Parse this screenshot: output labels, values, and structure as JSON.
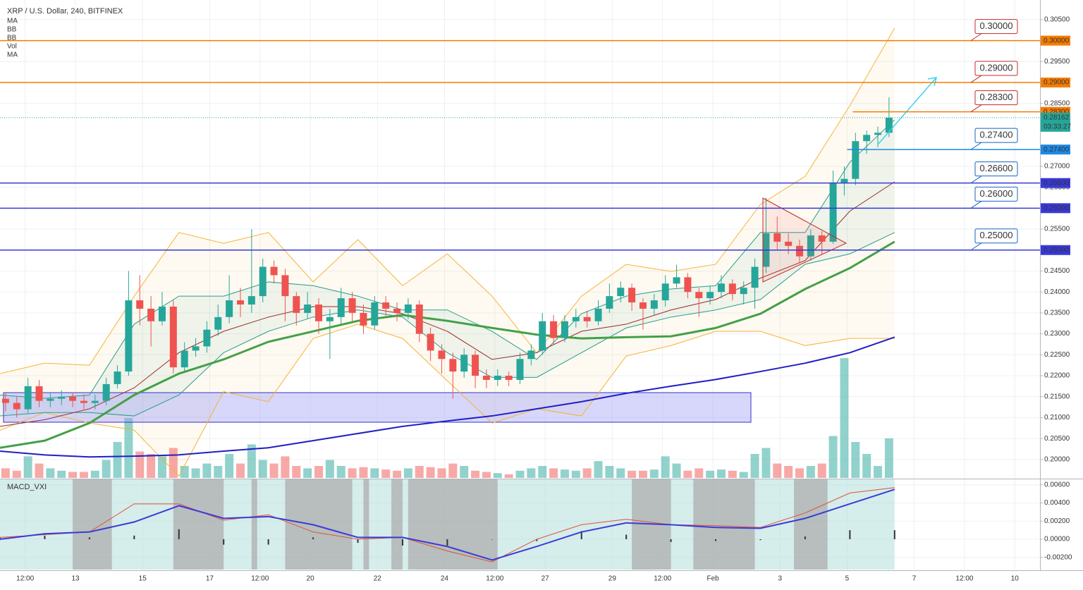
{
  "chart_data": {
    "type": "candlestick",
    "title": "XRP / U.S. Dollar, 240, BITFINEX",
    "xlim": [
      0,
      186
    ],
    "xticks": [
      {
        "value": 4.5,
        "label": "12:00"
      },
      {
        "value": 13.5,
        "label": "13"
      },
      {
        "value": 25.5,
        "label": "15"
      },
      {
        "value": 37.5,
        "label": "17"
      },
      {
        "value": 46.5,
        "label": "12:00"
      },
      {
        "value": 55.5,
        "label": "20"
      },
      {
        "value": 67.5,
        "label": "22"
      },
      {
        "value": 79.5,
        "label": "24"
      },
      {
        "value": 88.5,
        "label": "12:00"
      },
      {
        "value": 97.5,
        "label": "27"
      },
      {
        "value": 109.5,
        "label": "29"
      },
      {
        "value": 118.5,
        "label": "12:00"
      },
      {
        "value": 127.5,
        "label": "Feb"
      },
      {
        "value": 139.5,
        "label": "3"
      },
      {
        "value": 151.5,
        "label": "5"
      },
      {
        "value": 163.5,
        "label": "7"
      },
      {
        "value": 172.5,
        "label": "12:00"
      },
      {
        "value": 181.5,
        "label": "10"
      }
    ],
    "ylim": [
      0.1956,
      0.3097
    ],
    "yticks": [
      {
        "value": 0.2,
        "label": "0.20000"
      },
      {
        "value": 0.205,
        "label": "0.20500"
      },
      {
        "value": 0.21,
        "label": "0.21000"
      },
      {
        "value": 0.215,
        "label": "0.21500"
      },
      {
        "value": 0.22,
        "label": "0.22000"
      },
      {
        "value": 0.225,
        "label": "0.22500"
      },
      {
        "value": 0.23,
        "label": "0.23000"
      },
      {
        "value": 0.235,
        "label": "0.23500"
      },
      {
        "value": 0.24,
        "label": "0.24000"
      },
      {
        "value": 0.245,
        "label": "0.24500"
      },
      {
        "value": 0.255,
        "label": "0.25500"
      },
      {
        "value": 0.265,
        "label": "0.26500"
      },
      {
        "value": 0.27,
        "label": "0.27000"
      },
      {
        "value": 0.285,
        "label": "0.28500"
      },
      {
        "value": 0.295,
        "label": "0.29500"
      },
      {
        "value": 0.305,
        "label": "0.30500"
      }
    ],
    "grid": true,
    "up_color": "#26a69a",
    "down_color": "#ef5350",
    "x": [
      1,
      3,
      5,
      7,
      9,
      11,
      13,
      15,
      17,
      19,
      21,
      23,
      25,
      27,
      29,
      31,
      33,
      35,
      37,
      39,
      41,
      43,
      45,
      47,
      49,
      51,
      53,
      55,
      57,
      59,
      61,
      63,
      65,
      67,
      69,
      71,
      73,
      75,
      77,
      79,
      81,
      83,
      85,
      87,
      89,
      91,
      93,
      95,
      97,
      99,
      101,
      103,
      105,
      107,
      109,
      111,
      113,
      115,
      117,
      119,
      121,
      123,
      125,
      127,
      129,
      131,
      133,
      135,
      137,
      139,
      141,
      143,
      145,
      147,
      149,
      151,
      153,
      155,
      157,
      159
    ],
    "open": [
      0.2145,
      0.2135,
      0.212,
      0.2175,
      0.214,
      0.2145,
      0.215,
      0.214,
      0.2135,
      0.214,
      0.218,
      0.221,
      0.238,
      0.236,
      0.233,
      0.2365,
      0.222,
      0.226,
      0.227,
      0.231,
      0.234,
      0.238,
      0.237,
      0.239,
      0.246,
      0.244,
      0.239,
      0.235,
      0.237,
      0.233,
      0.234,
      0.2385,
      0.235,
      0.232,
      0.2375,
      0.236,
      0.235,
      0.237,
      0.23,
      0.226,
      0.224,
      0.221,
      0.225,
      0.22,
      0.219,
      0.22,
      0.219,
      0.224,
      0.226,
      0.233,
      0.229,
      0.233,
      0.234,
      0.233,
      0.236,
      0.239,
      0.241,
      0.2375,
      0.236,
      0.238,
      0.242,
      0.2435,
      0.24,
      0.2385,
      0.24,
      0.242,
      0.2395,
      0.241,
      0.246,
      0.254,
      0.252,
      0.251,
      0.2485,
      0.2535,
      0.252,
      0.266,
      0.267,
      0.276,
      0.2775,
      0.278
    ],
    "high": [
      0.216,
      0.215,
      0.2195,
      0.219,
      0.216,
      0.2165,
      0.216,
      0.2155,
      0.2155,
      0.2195,
      0.2225,
      0.245,
      0.244,
      0.239,
      0.24,
      0.238,
      0.228,
      0.229,
      0.233,
      0.237,
      0.244,
      0.241,
      0.255,
      0.248,
      0.2475,
      0.2455,
      0.24,
      0.24,
      0.2385,
      0.236,
      0.241,
      0.24,
      0.237,
      0.239,
      0.239,
      0.2375,
      0.2385,
      0.238,
      0.2315,
      0.2275,
      0.2255,
      0.2265,
      0.226,
      0.2215,
      0.2215,
      0.221,
      0.2255,
      0.2275,
      0.235,
      0.2345,
      0.2345,
      0.236,
      0.2355,
      0.238,
      0.242,
      0.2425,
      0.242,
      0.2385,
      0.2395,
      0.244,
      0.2465,
      0.2445,
      0.241,
      0.2415,
      0.244,
      0.243,
      0.2425,
      0.248,
      0.2625,
      0.258,
      0.254,
      0.2525,
      0.255,
      0.2545,
      0.269,
      0.27,
      0.278,
      0.2785,
      0.2795,
      0.2865
    ],
    "low": [
      0.2115,
      0.21,
      0.211,
      0.2125,
      0.2125,
      0.213,
      0.2125,
      0.212,
      0.212,
      0.213,
      0.217,
      0.22,
      0.232,
      0.227,
      0.232,
      0.2205,
      0.221,
      0.2245,
      0.2255,
      0.2295,
      0.2325,
      0.234,
      0.235,
      0.2375,
      0.242,
      0.233,
      0.232,
      0.2335,
      0.23,
      0.224,
      0.232,
      0.233,
      0.23,
      0.231,
      0.234,
      0.233,
      0.2335,
      0.228,
      0.2235,
      0.2205,
      0.2145,
      0.2195,
      0.217,
      0.217,
      0.2175,
      0.2175,
      0.218,
      0.2225,
      0.225,
      0.2275,
      0.228,
      0.2315,
      0.2315,
      0.232,
      0.235,
      0.2375,
      0.2355,
      0.231,
      0.2345,
      0.2365,
      0.241,
      0.2385,
      0.234,
      0.237,
      0.2385,
      0.238,
      0.237,
      0.236,
      0.2445,
      0.25,
      0.249,
      0.247,
      0.2475,
      0.249,
      0.2515,
      0.263,
      0.2655,
      0.273,
      0.2745,
      0.277
    ],
    "close": [
      0.2135,
      0.212,
      0.2175,
      0.214,
      0.2145,
      0.215,
      0.214,
      0.2135,
      0.214,
      0.218,
      0.221,
      0.238,
      0.236,
      0.233,
      0.2365,
      0.222,
      0.226,
      0.227,
      0.231,
      0.234,
      0.238,
      0.237,
      0.239,
      0.246,
      0.244,
      0.239,
      0.235,
      0.237,
      0.233,
      0.234,
      0.2385,
      0.235,
      0.232,
      0.2375,
      0.236,
      0.235,
      0.237,
      0.23,
      0.226,
      0.224,
      0.221,
      0.225,
      0.22,
      0.219,
      0.22,
      0.219,
      0.224,
      0.226,
      0.233,
      0.229,
      0.233,
      0.234,
      0.233,
      0.236,
      0.239,
      0.241,
      0.2375,
      0.236,
      0.238,
      0.242,
      0.2435,
      0.24,
      0.2385,
      0.24,
      0.242,
      0.2395,
      0.241,
      0.246,
      0.254,
      0.252,
      0.251,
      0.2485,
      0.2535,
      0.252,
      0.266,
      0.267,
      0.276,
      0.2775,
      0.278,
      0.2816
    ],
    "volume": [
      8,
      6,
      18,
      12,
      8,
      6,
      5,
      5,
      6,
      15,
      30,
      50,
      22,
      20,
      18,
      25,
      10,
      8,
      12,
      10,
      20,
      12,
      28,
      15,
      12,
      18,
      10,
      8,
      10,
      15,
      10,
      8,
      9,
      8,
      7,
      6,
      8,
      10,
      9,
      8,
      12,
      10,
      6,
      5,
      4,
      3,
      6,
      8,
      10,
      8,
      7,
      6,
      8,
      14,
      10,
      8,
      6,
      6,
      7,
      18,
      12,
      6,
      8,
      6,
      7,
      6,
      5,
      20,
      25,
      12,
      10,
      8,
      10,
      12,
      35,
      100,
      30,
      20,
      10,
      33
    ],
    "overlay_x": [
      0,
      8,
      16,
      24,
      32,
      40,
      48,
      56,
      64,
      72,
      80,
      88,
      96,
      104,
      112,
      120,
      128,
      136,
      144,
      152,
      160
    ],
    "overlays": [
      {
        "name": "MA",
        "color": "#43a047",
        "values": [
          0.2028,
          0.2045,
          0.2087,
          0.2154,
          0.2205,
          0.2239,
          0.2281,
          0.2306,
          0.2331,
          0.2345,
          0.2331,
          0.2314,
          0.2298,
          0.2289,
          0.2292,
          0.2294,
          0.2314,
          0.2348,
          0.2407,
          0.2457,
          0.252
        ]
      },
      {
        "name": "BB",
        "color": "#f7b234",
        "upper": [
          0.2205,
          0.223,
          0.2225,
          0.239,
          0.2542,
          0.2516,
          0.2542,
          0.2424,
          0.2525,
          0.2415,
          0.2491,
          0.239,
          0.2255,
          0.239,
          0.2466,
          0.2449,
          0.2466,
          0.2609,
          0.2676,
          0.2845,
          0.303
        ],
        "lower": [
          0.207,
          0.2112,
          0.2087,
          0.207,
          0.196,
          0.2162,
          0.2138,
          0.2289,
          0.2323,
          0.2289,
          0.2188,
          0.2087,
          0.2121,
          0.2104,
          0.2247,
          0.2272,
          0.2306,
          0.2306,
          0.2272,
          0.2289,
          0.2289
        ]
      },
      {
        "name": "BB",
        "color": "#2a9d8f",
        "upper": [
          0.2154,
          0.2146,
          0.2154,
          0.2323,
          0.239,
          0.239,
          0.2424,
          0.2415,
          0.239,
          0.2357,
          0.2357,
          0.2306,
          0.2239,
          0.2348,
          0.239,
          0.2407,
          0.2415,
          0.2542,
          0.2542,
          0.271,
          0.2811
        ],
        "lower": [
          0.2104,
          0.2112,
          0.2112,
          0.2104,
          0.2154,
          0.2255,
          0.2306,
          0.234,
          0.2357,
          0.234,
          0.2255,
          0.2196,
          0.2196,
          0.2255,
          0.2314,
          0.234,
          0.2357,
          0.2382,
          0.2466,
          0.2491,
          0.2542
        ],
        "basis": [
          0.2079,
          0.2095,
          0.2121,
          0.2171,
          0.2255,
          0.2306,
          0.234,
          0.2365,
          0.2365,
          0.2348,
          0.2306,
          0.2239,
          0.2255,
          0.2306,
          0.2323,
          0.2357,
          0.2382,
          0.2433,
          0.2475,
          0.2593,
          0.2663
        ],
        "basis_color": "#9c2a2a"
      },
      {
        "name": "Vol"
      },
      {
        "name": "MA",
        "color": "#1f1fc4",
        "values": [
          0.202,
          0.2011,
          0.2006,
          0.2008,
          0.2011,
          0.202,
          0.2028,
          0.2045,
          0.2062,
          0.2079,
          0.2092,
          0.2104,
          0.2121,
          0.2138,
          0.2158,
          0.2175,
          0.2191,
          0.221,
          0.223,
          0.2255,
          0.2292
        ]
      }
    ],
    "levels": [
      {
        "value": 0.3,
        "label": "0.30000",
        "color": "#f57c00",
        "text_color": "#c62828"
      },
      {
        "value": 0.29,
        "label": "0.29000",
        "color": "#f57c00",
        "text_color": "#c62828"
      },
      {
        "value": 0.283,
        "label": "0.28300",
        "color": "#f57c00",
        "text_color": "#c62828",
        "start": 152.5
      },
      {
        "value": 0.274,
        "label": "0.27400",
        "color": "#1e88e5",
        "text_color": "#1565c0",
        "start": 151.5
      },
      {
        "value": 0.266,
        "label": "0.26600",
        "color": "#3838d8",
        "text_color": "#1565c0"
      },
      {
        "value": 0.26,
        "label": "0.26000",
        "color": "#3838d8",
        "text_color": "#1565c0"
      },
      {
        "value": 0.25,
        "label": "0.25000",
        "color": "#3838d8",
        "text_color": "#1565c0"
      }
    ],
    "price": {
      "value": 0.28162,
      "countdown": "03:33:27",
      "color": "#26a69a"
    },
    "macd": {
      "title": "MACD_VXI",
      "ylim": [
        -0.00335,
        0.00661
      ],
      "yticks": [
        {
          "value": 0.006,
          "label": "0.00600"
        },
        {
          "value": 0.004,
          "label": "0.00400"
        },
        {
          "value": 0.002,
          "label": "0.00200"
        },
        {
          "value": 0,
          "label": "0.00000"
        },
        {
          "value": -0.002,
          "label": "-0.00200"
        }
      ],
      "line": [
        0,
        0.0006,
        0.0008,
        0.0019,
        0.0037,
        0.0023,
        0.0025,
        0.0016,
        0.0002,
        0.0002,
        -0.0008,
        -0.0023,
        -0.0008,
        0.0008,
        0.0018,
        0.0016,
        0.0013,
        0.0012,
        0.0023,
        0.0039,
        0.0055
      ],
      "line_color": "#3b3bd6",
      "signal": [
        0.0002,
        0.0005,
        0.0008,
        0.0039,
        0.0039,
        0.0021,
        0.0027,
        0.0008,
        0,
        0.0002,
        -0.0013,
        -0.0025,
        0,
        0.0016,
        0.0022,
        0.0016,
        0.0015,
        0.0013,
        0.0029,
        0.0051,
        0.0057
      ],
      "signal_color": "#e0503c",
      "histogram": [
        0.0002,
        0.0004,
        0.0002,
        0.0004,
        0.0011,
        -0.0006,
        -0.0006,
        0.0002,
        -0.0004,
        -0.0007,
        -0.0007,
        0,
        -0.0002,
        0.0009,
        0.0005,
        -0.0003,
        -0.0002,
        -0.0001,
        0.0003,
        0.001,
        0.001
      ],
      "shaded": [
        [
          13,
          20
        ],
        [
          31,
          40
        ],
        [
          45,
          46
        ],
        [
          51,
          63
        ],
        [
          65,
          66
        ],
        [
          70,
          72
        ],
        [
          73,
          89
        ],
        [
          113,
          120
        ],
        [
          124,
          135
        ],
        [
          142,
          148
        ]
      ],
      "shade_color": "#a9a9a9",
      "base_color": "#b2dfdb"
    }
  }
}
